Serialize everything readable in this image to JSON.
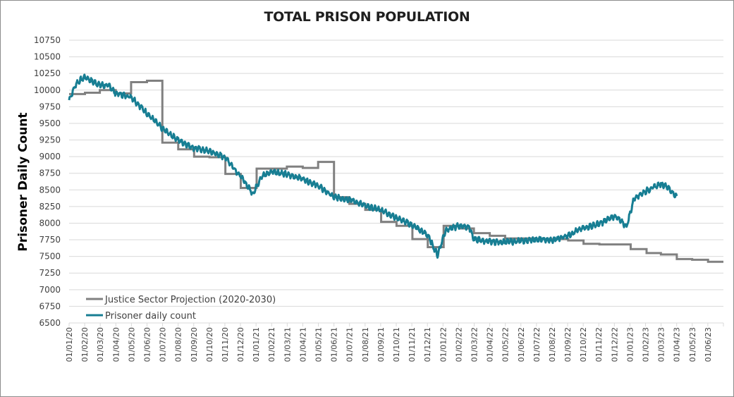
{
  "chart_data": {
    "type": "line",
    "title": "TOTAL PRISON POPULATION",
    "xlabel": "",
    "ylabel": "Prisoner Daily Count",
    "ylim": [
      6500,
      10750
    ],
    "ytick_step": 250,
    "yticks": [
      "10750",
      "10500",
      "10250",
      "10000",
      "9750",
      "9500",
      "9250",
      "9000",
      "8750",
      "8500",
      "8250",
      "8000",
      "7750",
      "7500",
      "7250",
      "7000",
      "6750",
      "6500"
    ],
    "x_start": "2020-01-01",
    "x_end": "2023-07-01",
    "xticks": [
      "01/01/20",
      "01/02/20",
      "01/03/20",
      "01/04/20",
      "01/05/20",
      "01/06/20",
      "01/07/20",
      "01/08/20",
      "01/09/20",
      "01/10/20",
      "01/11/20",
      "01/12/20",
      "01/01/21",
      "01/02/21",
      "01/03/21",
      "01/04/21",
      "01/05/21",
      "01/06/21",
      "01/07/21",
      "01/08/21",
      "01/09/21",
      "01/10/21",
      "01/11/21",
      "01/12/21",
      "01/01/22",
      "01/02/22",
      "01/03/22",
      "01/04/22",
      "01/05/22",
      "01/06/22",
      "01/07/22",
      "01/08/22",
      "01/09/22",
      "01/10/22",
      "01/11/22",
      "01/12/22",
      "01/01/23",
      "01/02/23",
      "01/03/23",
      "01/04/23",
      "01/05/23",
      "01/06/23"
    ],
    "grid": true,
    "legend_position": "bottom-left",
    "colors": {
      "projection": "#808080",
      "daily": "#177e93",
      "grid": "#d9d9d9"
    },
    "series": [
      {
        "name": "Justice Sector Projection (2020-2030)",
        "style": "step",
        "points": [
          {
            "x": "2020-01-01",
            "y": 9940
          },
          {
            "x": "2020-02-01",
            "y": 9960
          },
          {
            "x": "2020-03-01",
            "y": 10000
          },
          {
            "x": "2020-04-01",
            "y": 9950
          },
          {
            "x": "2020-05-01",
            "y": 10120
          },
          {
            "x": "2020-06-01",
            "y": 10140
          },
          {
            "x": "2020-07-01",
            "y": 9210
          },
          {
            "x": "2020-08-01",
            "y": 9110
          },
          {
            "x": "2020-09-01",
            "y": 9000
          },
          {
            "x": "2020-10-01",
            "y": 8990
          },
          {
            "x": "2020-11-01",
            "y": 8740
          },
          {
            "x": "2020-12-01",
            "y": 8530
          },
          {
            "x": "2021-01-01",
            "y": 8820
          },
          {
            "x": "2021-02-01",
            "y": 8820
          },
          {
            "x": "2021-03-01",
            "y": 8850
          },
          {
            "x": "2021-04-01",
            "y": 8830
          },
          {
            "x": "2021-05-01",
            "y": 8920
          },
          {
            "x": "2021-06-01",
            "y": 8390
          },
          {
            "x": "2021-07-01",
            "y": 8290
          },
          {
            "x": "2021-08-01",
            "y": 8200
          },
          {
            "x": "2021-09-01",
            "y": 8020
          },
          {
            "x": "2021-10-01",
            "y": 7960
          },
          {
            "x": "2021-11-01",
            "y": 7760
          },
          {
            "x": "2021-12-01",
            "y": 7640
          },
          {
            "x": "2022-01-01",
            "y": 7960
          },
          {
            "x": "2022-02-01",
            "y": 7920
          },
          {
            "x": "2022-03-01",
            "y": 7850
          },
          {
            "x": "2022-04-01",
            "y": 7810
          },
          {
            "x": "2022-05-01",
            "y": 7770
          },
          {
            "x": "2022-06-01",
            "y": 7770
          },
          {
            "x": "2022-07-01",
            "y": 7760
          },
          {
            "x": "2022-08-01",
            "y": 7760
          },
          {
            "x": "2022-09-01",
            "y": 7740
          },
          {
            "x": "2022-10-01",
            "y": 7690
          },
          {
            "x": "2022-11-01",
            "y": 7680
          },
          {
            "x": "2022-12-01",
            "y": 7680
          },
          {
            "x": "2023-01-01",
            "y": 7610
          },
          {
            "x": "2023-02-01",
            "y": 7550
          },
          {
            "x": "2023-03-01",
            "y": 7530
          },
          {
            "x": "2023-04-01",
            "y": 7460
          },
          {
            "x": "2023-05-01",
            "y": 7450
          },
          {
            "x": "2023-06-01",
            "y": 7420
          },
          {
            "x": "2023-07-01",
            "y": 7420
          }
        ]
      },
      {
        "name": "Prisoner daily count",
        "style": "daily",
        "noise_amplitude": 45,
        "points": [
          {
            "x": "2020-01-01",
            "y": 9850
          },
          {
            "x": "2020-01-15",
            "y": 10100
          },
          {
            "x": "2020-02-01",
            "y": 10200
          },
          {
            "x": "2020-02-15",
            "y": 10130
          },
          {
            "x": "2020-03-01",
            "y": 10080
          },
          {
            "x": "2020-03-20",
            "y": 10060
          },
          {
            "x": "2020-04-01",
            "y": 9950
          },
          {
            "x": "2020-05-01",
            "y": 9900
          },
          {
            "x": "2020-06-01",
            "y": 9650
          },
          {
            "x": "2020-07-01",
            "y": 9420
          },
          {
            "x": "2020-08-01",
            "y": 9250
          },
          {
            "x": "2020-09-01",
            "y": 9130
          },
          {
            "x": "2020-10-01",
            "y": 9080
          },
          {
            "x": "2020-11-01",
            "y": 8990
          },
          {
            "x": "2020-12-01",
            "y": 8700
          },
          {
            "x": "2020-12-25",
            "y": 8440
          },
          {
            "x": "2021-01-10",
            "y": 8700
          },
          {
            "x": "2021-02-01",
            "y": 8780
          },
          {
            "x": "2021-03-01",
            "y": 8730
          },
          {
            "x": "2021-04-01",
            "y": 8670
          },
          {
            "x": "2021-05-01",
            "y": 8560
          },
          {
            "x": "2021-06-01",
            "y": 8390
          },
          {
            "x": "2021-07-01",
            "y": 8360
          },
          {
            "x": "2021-08-01",
            "y": 8260
          },
          {
            "x": "2021-09-01",
            "y": 8200
          },
          {
            "x": "2021-10-01",
            "y": 8080
          },
          {
            "x": "2021-11-01",
            "y": 7970
          },
          {
            "x": "2021-12-01",
            "y": 7820
          },
          {
            "x": "2021-12-20",
            "y": 7520
          },
          {
            "x": "2022-01-05",
            "y": 7900
          },
          {
            "x": "2022-02-01",
            "y": 7960
          },
          {
            "x": "2022-02-20",
            "y": 7940
          },
          {
            "x": "2022-03-01",
            "y": 7760
          },
          {
            "x": "2022-04-01",
            "y": 7720
          },
          {
            "x": "2022-05-01",
            "y": 7720
          },
          {
            "x": "2022-06-01",
            "y": 7730
          },
          {
            "x": "2022-07-01",
            "y": 7760
          },
          {
            "x": "2022-08-01",
            "y": 7740
          },
          {
            "x": "2022-09-01",
            "y": 7820
          },
          {
            "x": "2022-10-01",
            "y": 7930
          },
          {
            "x": "2022-11-01",
            "y": 7990
          },
          {
            "x": "2022-12-01",
            "y": 8110
          },
          {
            "x": "2022-12-24",
            "y": 7950
          },
          {
            "x": "2023-01-08",
            "y": 8380
          },
          {
            "x": "2023-02-01",
            "y": 8490
          },
          {
            "x": "2023-03-01",
            "y": 8590
          },
          {
            "x": "2023-03-12",
            "y": 8560
          },
          {
            "x": "2023-04-01",
            "y": 8390
          }
        ]
      }
    ]
  }
}
